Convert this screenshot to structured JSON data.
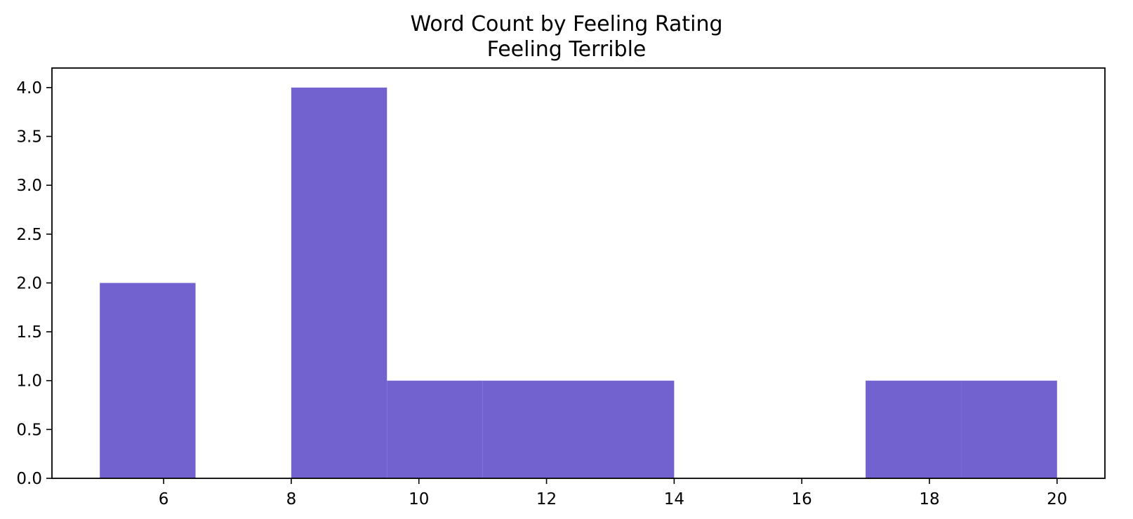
{
  "chart_data": {
    "type": "bar",
    "title": "Word Count by Feeling Rating",
    "subtitle": "Feeling Terrible",
    "xlabel": "",
    "ylabel": "",
    "xlim": [
      4.25,
      20.75
    ],
    "ylim": [
      0,
      4.2
    ],
    "xticks": [
      6,
      8,
      10,
      12,
      14,
      16,
      18,
      20
    ],
    "yticks": [
      0.0,
      0.5,
      1.0,
      1.5,
      2.0,
      2.5,
      3.0,
      3.5,
      4.0
    ],
    "xtick_labels": [
      "6",
      "8",
      "10",
      "12",
      "14",
      "16",
      "18",
      "20"
    ],
    "ytick_labels": [
      "0.0",
      "0.5",
      "1.0",
      "1.5",
      "2.0",
      "2.5",
      "3.0",
      "3.5",
      "4.0"
    ],
    "bins": [
      {
        "x0": 5.0,
        "x1": 6.5,
        "count": 2
      },
      {
        "x0": 6.5,
        "x1": 8.0,
        "count": 0
      },
      {
        "x0": 8.0,
        "x1": 9.5,
        "count": 4
      },
      {
        "x0": 9.5,
        "x1": 11.0,
        "count": 1
      },
      {
        "x0": 11.0,
        "x1": 12.5,
        "count": 1
      },
      {
        "x0": 12.5,
        "x1": 14.0,
        "count": 1
      },
      {
        "x0": 14.0,
        "x1": 15.5,
        "count": 0
      },
      {
        "x0": 15.5,
        "x1": 17.0,
        "count": 0
      },
      {
        "x0": 17.0,
        "x1": 18.5,
        "count": 1
      },
      {
        "x0": 18.5,
        "x1": 20.0,
        "count": 1
      }
    ],
    "bar_color": "#6a5acd",
    "grid": false,
    "legend": "none"
  }
}
